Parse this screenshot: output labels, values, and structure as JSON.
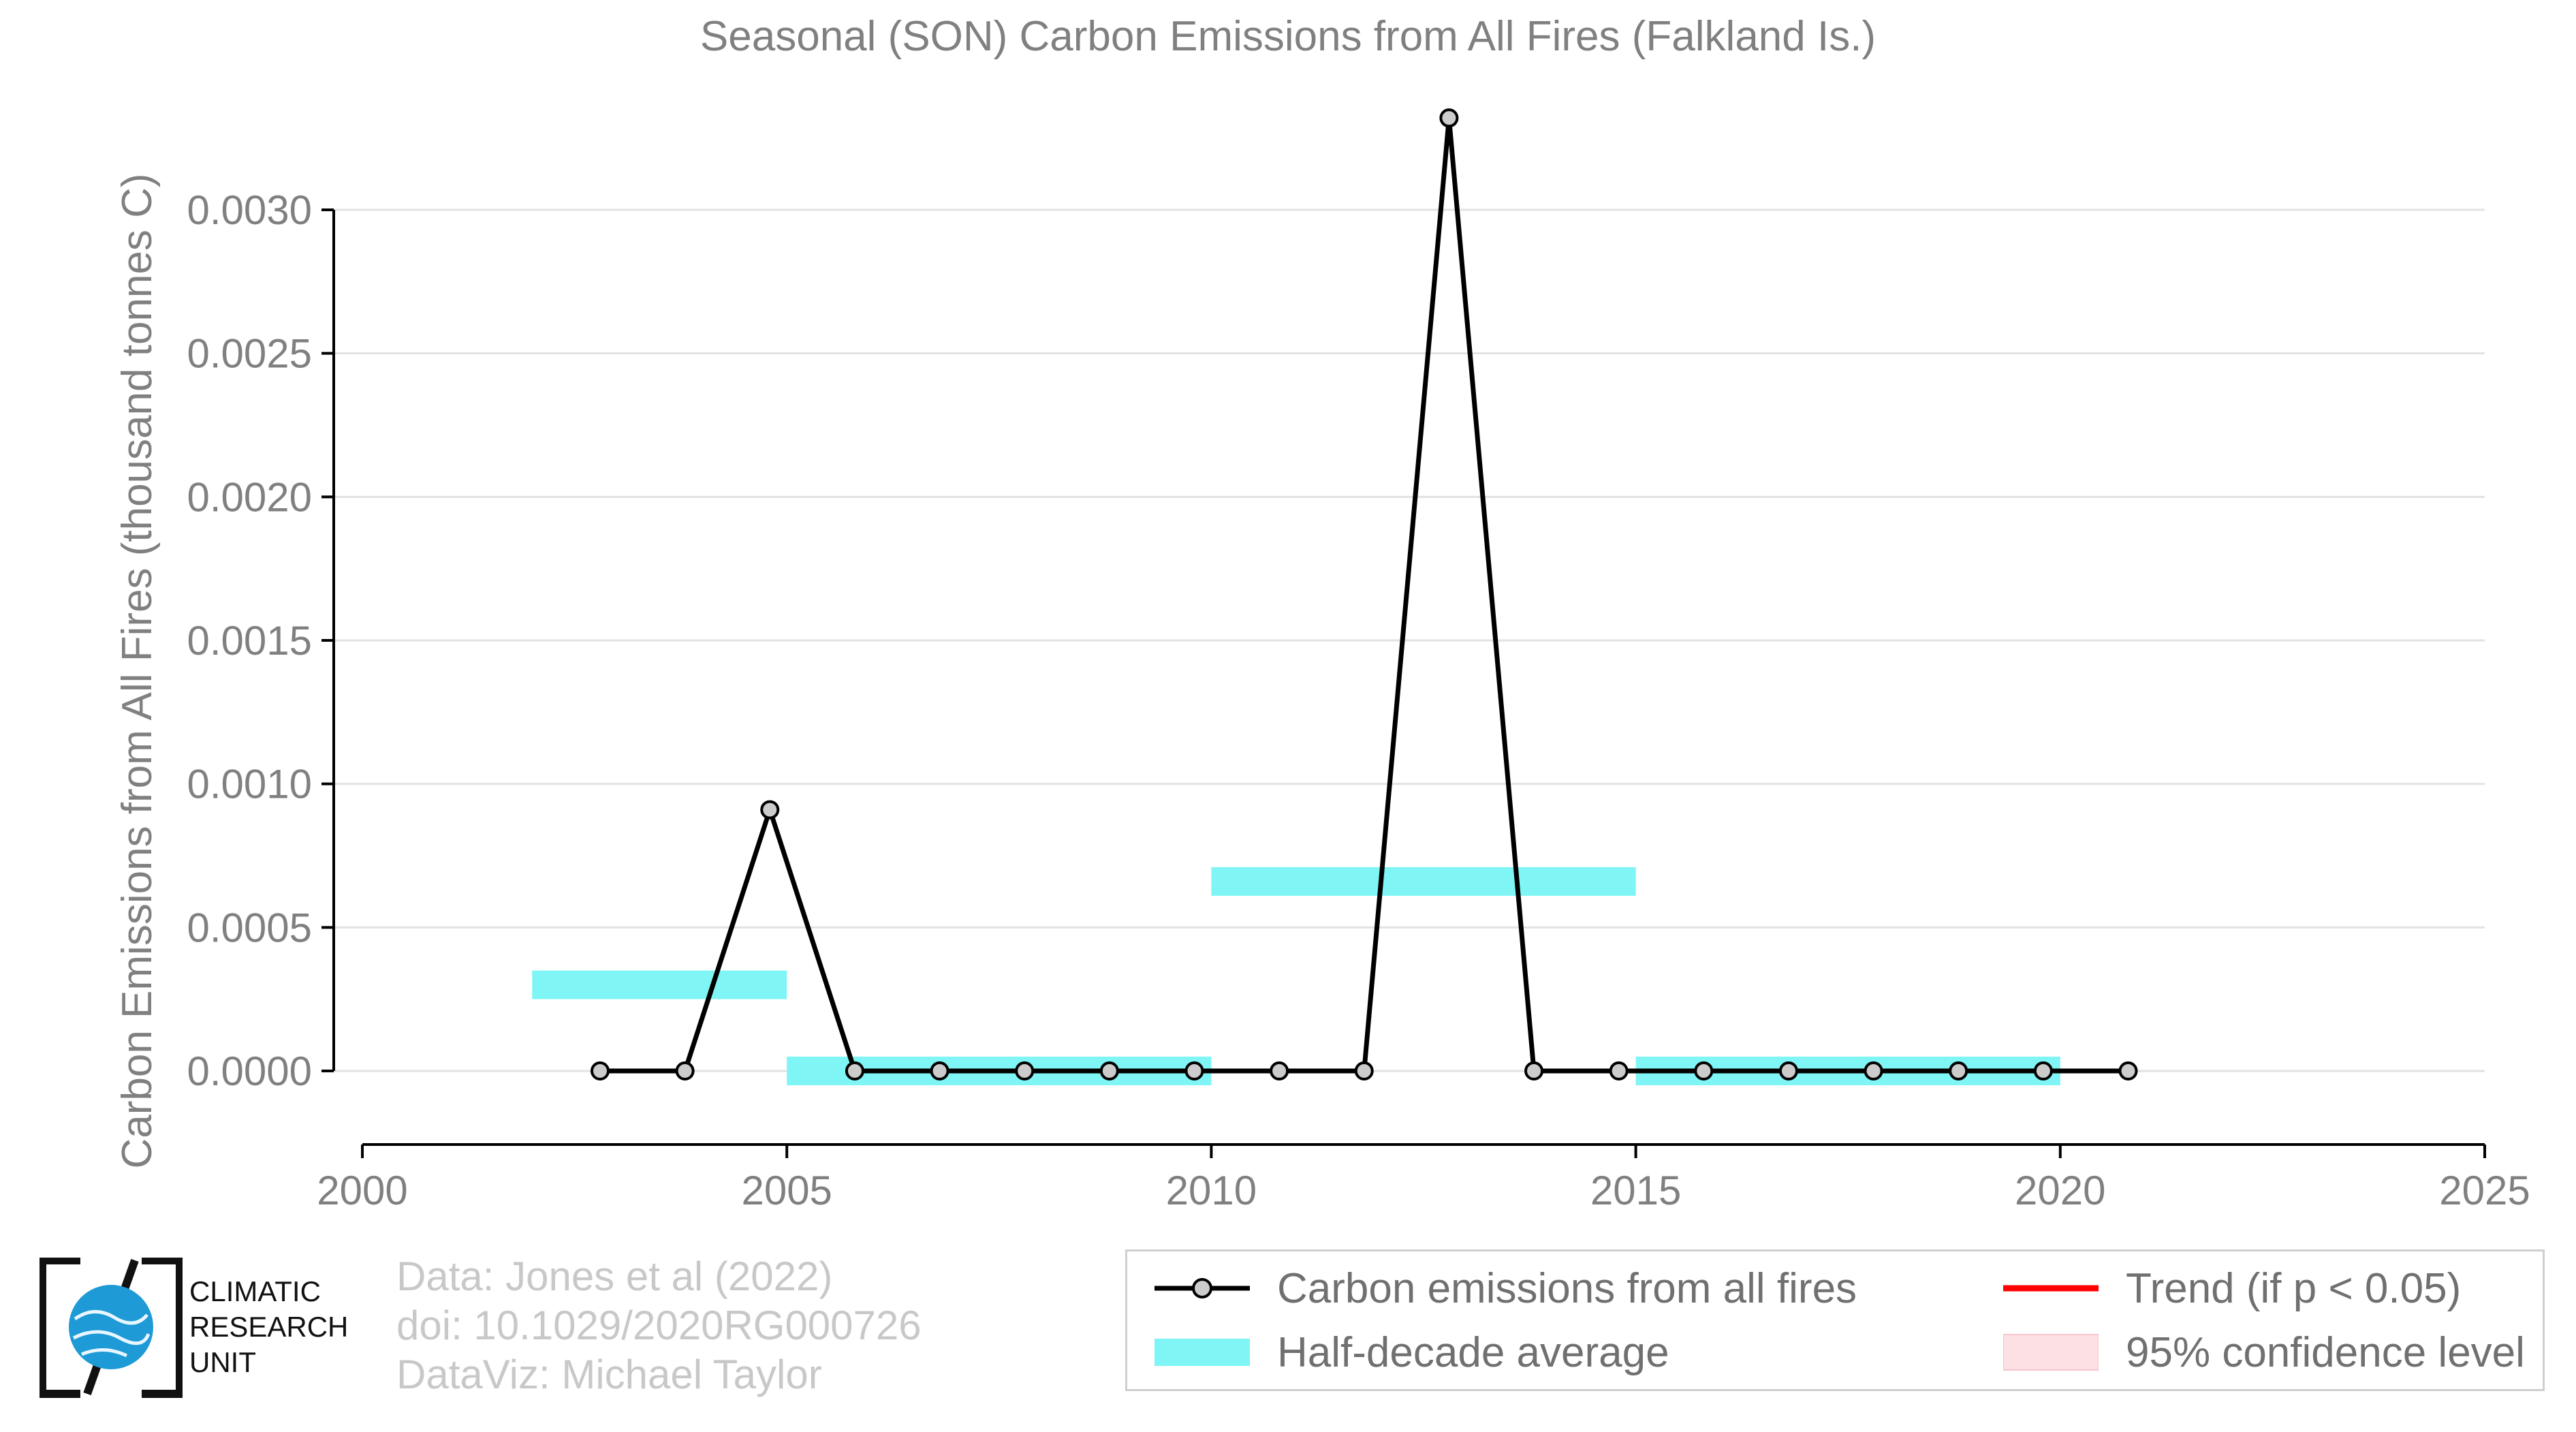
{
  "title": "Seasonal (SON) Carbon Emissions from All Fires (Falkland Is.)",
  "chart_data": {
    "type": "line",
    "title": "Seasonal (SON) Carbon Emissions from All Fires (Falkland Is.)",
    "xlabel": "",
    "ylabel": "Carbon Emissions from All Fires (thousand tonnes C)",
    "xlim": [
      2000,
      2025
    ],
    "ylim": [
      -0.00026,
      0.00335
    ],
    "x_ticks": [
      2000,
      2005,
      2010,
      2015,
      2020,
      2025
    ],
    "y_ticks": [
      0.0,
      0.0005,
      0.001,
      0.0015,
      0.002,
      0.0025,
      0.003
    ],
    "y_tick_labels": [
      "0.0000",
      "0.0005",
      "0.0010",
      "0.0015",
      "0.0020",
      "0.0025",
      "0.0030"
    ],
    "grid": "horizontal",
    "series": [
      {
        "name": "Carbon emissions from all fires",
        "color": "#000000",
        "x": [
          2002.8,
          2003.8,
          2004.8,
          2005.8,
          2006.8,
          2007.8,
          2008.8,
          2009.8,
          2010.8,
          2011.8,
          2012.8,
          2013.8,
          2014.8,
          2015.8,
          2016.8,
          2017.8,
          2018.8,
          2019.8,
          2020.8
        ],
        "values": [
          0.0,
          0.0,
          0.00091,
          0.0,
          0.0,
          0.0,
          0.0,
          0.0,
          0.0,
          0.0,
          0.00332,
          0.0,
          0.0,
          0.0,
          0.0,
          0.0,
          0.0,
          0.0,
          0.0
        ]
      }
    ],
    "half_decade_average": {
      "name": "Half-decade average",
      "color": "#7ff5f5",
      "segments": [
        {
          "x0": 2002,
          "x1": 2005,
          "value": 0.0003
        },
        {
          "x0": 2005,
          "x1": 2010,
          "value": 0.0
        },
        {
          "x0": 2010,
          "x1": 2015,
          "value": 0.00066
        },
        {
          "x0": 2015,
          "x1": 2020,
          "value": 0.0
        }
      ]
    },
    "legend": {
      "placement": "bottom-right",
      "entries": [
        {
          "label": "Carbon emissions from all fires",
          "color": "#000000"
        },
        {
          "label": "Trend (if p < 0.05)",
          "color": "#ff0000"
        },
        {
          "label": "Half-decade average",
          "color": "#7ff5f5"
        },
        {
          "label": "95% confidence level",
          "color": "#fde0e4"
        }
      ]
    }
  },
  "credits": {
    "line1": "Data: Jones et al (2022)",
    "line2": "doi: 10.1029/2020RG000726",
    "line3": "DataViz: Michael Taylor"
  },
  "logo": {
    "line1": "CLIMATIC",
    "line2": "RESEARCH",
    "line3": "UNIT"
  }
}
